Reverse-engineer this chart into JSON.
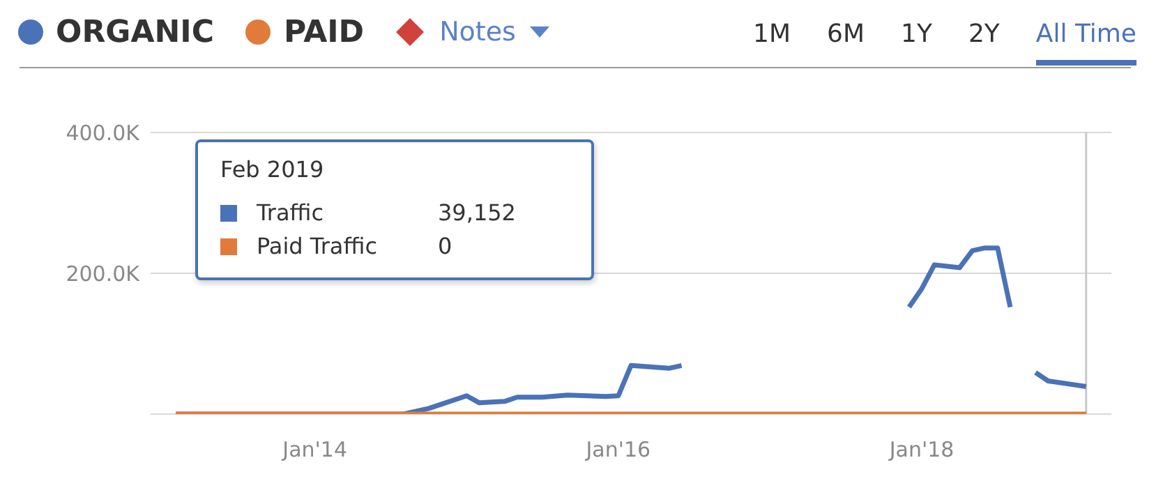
{
  "chart_data": {
    "type": "line",
    "legend": "top left",
    "grid": "y",
    "marker": "none",
    "line_style": "solid",
    "ylim": [
      0,
      400000
    ],
    "yticks": [
      {
        "value": 0,
        "label": null
      },
      {
        "value": 200000,
        "label": "200.0K"
      },
      {
        "value": 400000,
        "label": "400.0K"
      }
    ],
    "xlim": [
      "2012-12",
      "2019-04"
    ],
    "xticks": [
      {
        "value": "2014-01",
        "label": "Jan'14"
      },
      {
        "value": "2016-01",
        "label": "Jan'16"
      },
      {
        "value": "2018-01",
        "label": "Jan'18"
      }
    ],
    "series": [
      {
        "name": "ORGANIC",
        "color": "#4a72b8",
        "x": [
          "2013-02",
          "2014-08",
          "2014-10",
          "2014-11",
          "2015-01",
          "2015-02",
          "2015-04",
          "2015-05",
          "2015-07",
          "2015-09",
          "2015-12",
          "2016-01",
          "2016-02",
          "2016-05",
          "2016-06",
          "2016-08",
          "2017-12",
          "2018-01",
          "2018-02",
          "2018-04",
          "2018-05",
          "2018-06",
          "2018-07",
          "2018-08",
          "2018-09",
          "2018-10",
          "2018-11",
          "2019-02"
        ],
        "values": [
          0,
          0,
          8000,
          14000,
          26000,
          16000,
          18000,
          24000,
          24000,
          27000,
          25000,
          26000,
          69000,
          65000,
          69000,
          null,
          152000,
          178000,
          212000,
          208000,
          232000,
          236000,
          236000,
          152000,
          null,
          59000,
          47000,
          39152
        ]
      },
      {
        "name": "PAID",
        "color": "#e07b39",
        "x": [
          "2013-02",
          "2019-02"
        ],
        "values": [
          0,
          0
        ]
      }
    ],
    "ref_lines": [
      {
        "axis": "x",
        "value": "2019-02",
        "color": "#c8c8c8"
      }
    ],
    "annotations": [
      "Notes",
      "1M",
      "6M",
      "1Y",
      "2Y",
      "All Time",
      "Feb 2019",
      "Traffic",
      "39,152",
      "Paid Traffic",
      "0"
    ]
  }
}
